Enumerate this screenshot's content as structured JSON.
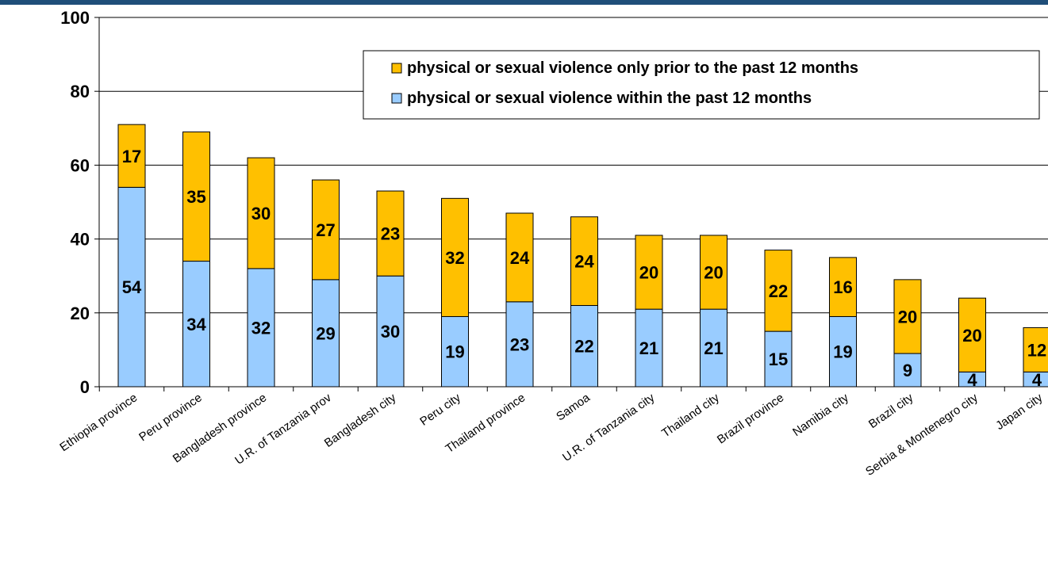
{
  "chart_data": {
    "type": "bar",
    "stacked": true,
    "categories": [
      "Ethiopia province",
      "Peru province",
      "Bangladesh province",
      "U.R. of Tanzania prov",
      "Bangladesh city",
      "Peru city",
      "Thailand province",
      "Samoa",
      "U.R. of Tanzania city",
      "Thailand city",
      "Brazil province",
      "Namibia city",
      "Brazil city",
      "Serbia & Montenegro city",
      "Japan city"
    ],
    "series": [
      {
        "name": "physical or sexual violence within the past 12 months",
        "color": "#99ccff",
        "values": [
          54,
          34,
          32,
          29,
          30,
          19,
          23,
          22,
          21,
          21,
          15,
          19,
          9,
          4,
          4
        ]
      },
      {
        "name": "physical or sexual violence only prior to the past 12 months",
        "color": "#ffc000",
        "values": [
          17,
          35,
          30,
          27,
          23,
          32,
          24,
          24,
          20,
          20,
          22,
          16,
          20,
          20,
          12
        ]
      }
    ],
    "ylim": [
      0,
      100
    ],
    "yticks": [
      "0",
      "20",
      "40",
      "60",
      "80",
      "100"
    ],
    "grid": true,
    "legend_position": "top-right",
    "legend_order": [
      1,
      0
    ],
    "title": "",
    "xlabel": "",
    "ylabel": ""
  },
  "colors": {
    "background": "#ffffff",
    "axis": "#000000",
    "grid": "#000000",
    "top_strip": "#1f4e79"
  }
}
